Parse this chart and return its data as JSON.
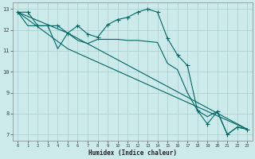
{
  "xlabel": "Humidex (Indice chaleur)",
  "bg_color": "#cceaea",
  "grid_color": "#aacccc",
  "line_color": "#006666",
  "xlim": [
    -0.5,
    23.5
  ],
  "ylim": [
    6.7,
    13.3
  ],
  "yticks": [
    7,
    8,
    9,
    10,
    11,
    12,
    13
  ],
  "xticks": [
    0,
    1,
    2,
    3,
    4,
    5,
    6,
    7,
    8,
    9,
    10,
    11,
    12,
    13,
    14,
    15,
    16,
    17,
    18,
    19,
    20,
    21,
    22,
    23
  ],
  "line1_x": [
    0,
    1,
    2,
    3,
    4,
    5,
    6,
    7,
    8,
    9,
    10,
    11,
    12,
    13,
    14,
    15,
    16,
    17,
    18,
    19,
    20,
    21,
    22,
    23
  ],
  "line1_y": [
    12.85,
    12.85,
    12.2,
    12.2,
    12.2,
    11.85,
    12.2,
    11.8,
    11.65,
    12.25,
    12.5,
    12.6,
    12.85,
    13.0,
    12.85,
    11.6,
    10.8,
    10.3,
    8.15,
    7.5,
    8.1,
    7.0,
    7.35,
    7.25
  ],
  "line2_x": [
    0,
    1,
    2,
    3,
    4,
    5,
    6,
    7,
    8,
    9,
    10,
    11,
    12,
    13,
    14,
    15,
    16,
    17,
    18,
    19,
    20,
    21,
    22,
    23
  ],
  "line2_y": [
    12.85,
    12.2,
    12.2,
    12.2,
    11.1,
    11.85,
    11.5,
    11.35,
    11.55,
    11.55,
    11.55,
    11.5,
    11.5,
    11.45,
    11.4,
    10.4,
    10.1,
    9.0,
    8.15,
    7.85,
    8.1,
    7.0,
    7.35,
    7.25
  ],
  "line3_x": [
    0,
    5,
    23
  ],
  "line3_y": [
    12.85,
    11.85,
    7.25
  ],
  "line4_x": [
    0,
    5,
    23
  ],
  "line4_y": [
    12.85,
    11.1,
    7.25
  ]
}
